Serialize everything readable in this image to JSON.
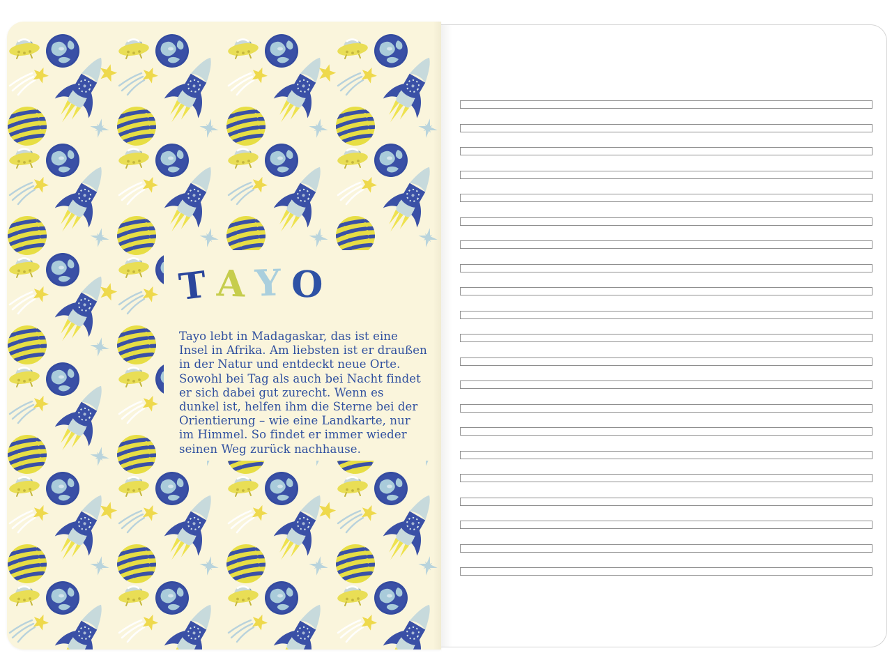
{
  "page_type": "notebook-spread",
  "left_page": {
    "background_color": "#faf5dc",
    "title": {
      "text": "TAYO",
      "letters": [
        {
          "char": "T",
          "color": "#2b469c"
        },
        {
          "char": "A",
          "color": "#c6cd4d"
        },
        {
          "char": "Y",
          "color": "#aacfdd"
        },
        {
          "char": "O",
          "color": "#2e52a5"
        }
      ]
    },
    "paragraph": "Tayo lebt in Madagaskar, das ist eine\nInsel in Afrika. Am liebsten ist er draußen\nin der Natur und entdeckt neue Orte.\nSowohl bei Tag als auch bei Nacht findet\ner sich dabei gut zurecht. Wenn es\ndunkel ist, helfen ihm die Sterne bei der\nOrientierung – wie eine Landkarte, nur\nim Himmel. So findet er immer wieder\nseinen Weg zurück nachhause.",
    "text_color": "#30509f",
    "pattern": {
      "motifs": [
        "rocket-icon",
        "earth-icon",
        "ufo-icon",
        "striped-planet-icon",
        "shooting-star-icon",
        "star-icon",
        "sparkle-icon"
      ],
      "colors": {
        "blue": "#3a50a6",
        "yellow": "#e7de44",
        "light_blue": "#c7dadc",
        "star_yellow": "#eed94c",
        "sparkle_blue": "#b9d4dc",
        "continent_blue": "#a9cbda"
      }
    }
  },
  "right_page": {
    "background_color": "#ffffff",
    "lines_count": 21,
    "line_border_color": "#8e8e8e"
  }
}
